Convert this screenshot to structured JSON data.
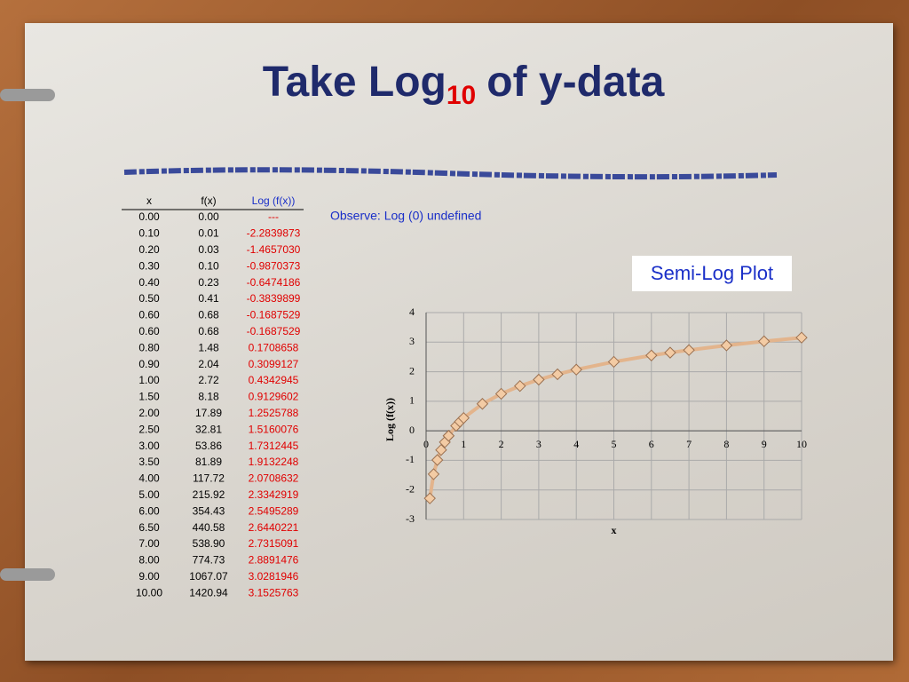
{
  "title": {
    "main": "Take Log",
    "sub": "10",
    "rest": "of y-data"
  },
  "table": {
    "header": [
      "x",
      "f(x)",
      "Log (f(x))"
    ],
    "rows": [
      [
        "0.00",
        "0.00",
        "---"
      ],
      [
        "0.10",
        "0.01",
        "-2.2839873"
      ],
      [
        "0.20",
        "0.03",
        "-1.4657030"
      ],
      [
        "0.30",
        "0.10",
        "-0.9870373"
      ],
      [
        "0.40",
        "0.23",
        "-0.6474186"
      ],
      [
        "0.50",
        "0.41",
        "-0.3839899"
      ],
      [
        "0.60",
        "0.68",
        "-0.1687529"
      ],
      [
        "0.60",
        "0.68",
        "-0.1687529"
      ],
      [
        "0.80",
        "1.48",
        "0.1708658"
      ],
      [
        "0.90",
        "2.04",
        "0.3099127"
      ],
      [
        "1.00",
        "2.72",
        "0.4342945"
      ],
      [
        "1.50",
        "8.18",
        "0.9129602"
      ],
      [
        "2.00",
        "17.89",
        "1.2525788"
      ],
      [
        "2.50",
        "32.81",
        "1.5160076"
      ],
      [
        "3.00",
        "53.86",
        "1.7312445"
      ],
      [
        "3.50",
        "81.89",
        "1.9132248"
      ],
      [
        "4.00",
        "117.72",
        "2.0708632"
      ],
      [
        "5.00",
        "215.92",
        "2.3342919"
      ],
      [
        "6.00",
        "354.43",
        "2.5495289"
      ],
      [
        "6.50",
        "440.58",
        "2.6440221"
      ],
      [
        "7.00",
        "538.90",
        "2.7315091"
      ],
      [
        "8.00",
        "774.73",
        "2.8891476"
      ],
      [
        "9.00",
        "1067.07",
        "3.0281946"
      ],
      [
        "10.00",
        "1420.94",
        "3.1525763"
      ]
    ]
  },
  "note": "Observe: Log (0) undefined",
  "chart_label": "Semi-Log Plot",
  "chart_data": {
    "type": "line",
    "xlabel": "x",
    "ylabel": "Log (f(x))",
    "x": [
      0.1,
      0.2,
      0.3,
      0.4,
      0.5,
      0.6,
      0.6,
      0.8,
      0.9,
      1,
      1.5,
      2,
      2.5,
      3,
      3.5,
      4,
      5,
      6,
      6.5,
      7,
      8,
      9,
      10
    ],
    "values": [
      -2.2839873,
      -1.465703,
      -0.9870373,
      -0.6474186,
      -0.3839899,
      -0.1687529,
      -0.1687529,
      0.1708658,
      0.3099127,
      0.4342945,
      0.9129602,
      1.2525788,
      1.5160076,
      1.7312445,
      1.9132248,
      2.0708632,
      2.3342919,
      2.5495289,
      2.6440221,
      2.7315091,
      2.8891476,
      3.0281946,
      3.1525763
    ],
    "color": "#e3b48c",
    "marker_color": "#f3cba4",
    "xlim": [
      0,
      10
    ],
    "xticks": [
      0,
      1,
      2,
      3,
      4,
      5,
      6,
      7,
      8,
      9,
      10
    ],
    "ylim": [
      -3,
      4
    ],
    "yticks": [
      -3,
      -2,
      -1,
      0,
      1,
      2,
      3,
      4
    ],
    "grid": true
  }
}
